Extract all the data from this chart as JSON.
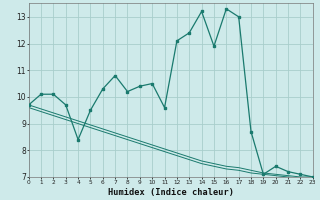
{
  "xlabel": "Humidex (Indice chaleur)",
  "x": [
    0,
    1,
    2,
    3,
    4,
    5,
    6,
    7,
    8,
    9,
    10,
    11,
    12,
    13,
    14,
    15,
    16,
    17,
    18,
    19,
    20,
    21,
    22,
    23
  ],
  "line1": [
    9.7,
    10.1,
    10.1,
    9.7,
    8.4,
    9.5,
    10.3,
    10.8,
    10.2,
    10.4,
    10.5,
    9.6,
    12.1,
    12.4,
    13.2,
    11.9,
    13.3,
    13.0,
    8.7,
    7.1,
    7.4,
    7.2,
    7.1,
    7.0
  ],
  "line2": [
    9.7,
    9.55,
    9.4,
    9.25,
    9.1,
    8.95,
    8.8,
    8.65,
    8.5,
    8.35,
    8.2,
    8.05,
    7.9,
    7.75,
    7.6,
    7.5,
    7.4,
    7.35,
    7.25,
    7.15,
    7.1,
    7.05,
    7.0,
    7.0
  ],
  "line3": [
    9.6,
    9.45,
    9.3,
    9.15,
    9.0,
    8.85,
    8.7,
    8.55,
    8.4,
    8.25,
    8.1,
    7.95,
    7.8,
    7.65,
    7.5,
    7.4,
    7.3,
    7.25,
    7.15,
    7.1,
    7.05,
    7.0,
    6.95,
    6.95
  ],
  "line_color": "#1a7a6e",
  "bg_color": "#ceeaea",
  "grid_color": "#a8cecc",
  "ylim": [
    7,
    13.5
  ],
  "xlim": [
    0,
    23
  ],
  "yticks": [
    7,
    8,
    9,
    10,
    11,
    12,
    13
  ],
  "xticks": [
    0,
    1,
    2,
    3,
    4,
    5,
    6,
    7,
    8,
    9,
    10,
    11,
    12,
    13,
    14,
    15,
    16,
    17,
    18,
    19,
    20,
    21,
    22,
    23
  ]
}
